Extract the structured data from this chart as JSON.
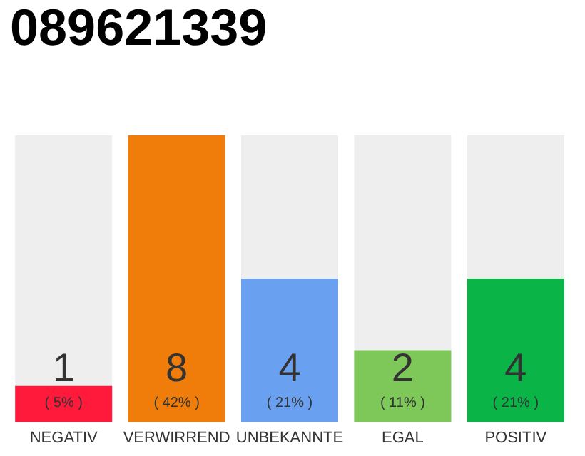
{
  "chart_data": {
    "type": "bar",
    "title": "089621339",
    "categories": [
      "NEGATIV",
      "VERWIRREND",
      "UNBEKANNTE",
      "EGAL",
      "POSITIV"
    ],
    "values": [
      1,
      8,
      4,
      2,
      4
    ],
    "colors": [
      "#ff1a3c",
      "#f07d0a",
      "#6aa0f0",
      "#7ec85a",
      "#0ab446"
    ],
    "data_labels": true,
    "annotations": [
      "( 5% )",
      "( 42% )",
      "( 21% )",
      "( 11% )",
      "( 21% )"
    ]
  }
}
